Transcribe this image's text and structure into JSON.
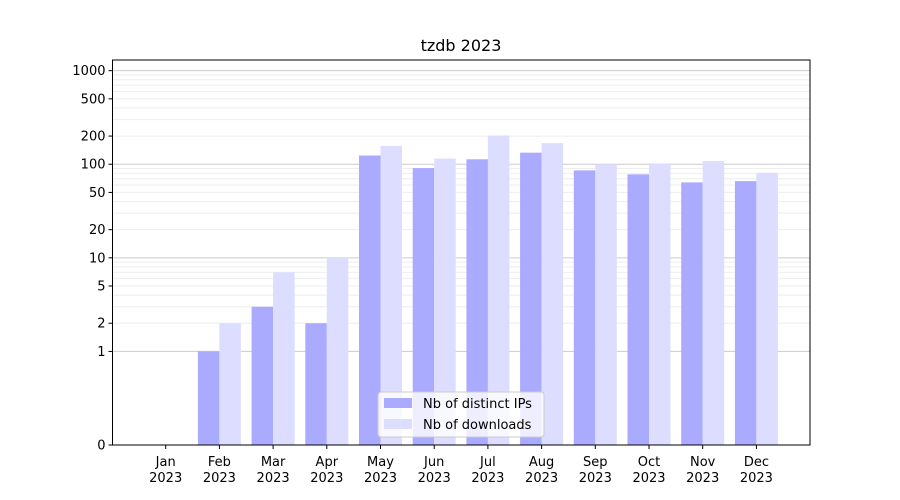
{
  "chart_data": {
    "type": "bar",
    "title": "tzdb 2023",
    "xlabel": "",
    "ylabel": "",
    "yscale": "symlog",
    "ylim": [
      0,
      1300
    ],
    "grid": "y",
    "legend_position": "bottom-center",
    "categories": [
      {
        "month": "Jan",
        "year": "2023"
      },
      {
        "month": "Feb",
        "year": "2023"
      },
      {
        "month": "Mar",
        "year": "2023"
      },
      {
        "month": "Apr",
        "year": "2023"
      },
      {
        "month": "May",
        "year": "2023"
      },
      {
        "month": "Jun",
        "year": "2023"
      },
      {
        "month": "Jul",
        "year": "2023"
      },
      {
        "month": "Aug",
        "year": "2023"
      },
      {
        "month": "Sep",
        "year": "2023"
      },
      {
        "month": "Oct",
        "year": "2023"
      },
      {
        "month": "Nov",
        "year": "2023"
      },
      {
        "month": "Dec",
        "year": "2023"
      }
    ],
    "yticks": [
      {
        "value": 0,
        "label": "0"
      },
      {
        "value": 1,
        "label": "1"
      },
      {
        "value": 2,
        "label": "2"
      },
      {
        "value": 5,
        "label": "5"
      },
      {
        "value": 10,
        "label": "10"
      },
      {
        "value": 20,
        "label": "20"
      },
      {
        "value": 50,
        "label": "50"
      },
      {
        "value": 100,
        "label": "100"
      },
      {
        "value": 200,
        "label": "200"
      },
      {
        "value": 500,
        "label": "500"
      },
      {
        "value": 1000,
        "label": "1000"
      }
    ],
    "series": [
      {
        "name": "Nb of distinct IPs",
        "color": "#aaaaff",
        "values": [
          0,
          1,
          3,
          2,
          124,
          91,
          113,
          133,
          86,
          78,
          64,
          66
        ]
      },
      {
        "name": "Nb of downloads",
        "color": "#ddddff",
        "values": [
          0,
          2,
          7,
          10,
          157,
          115,
          203,
          168,
          100,
          102,
          108,
          81
        ]
      }
    ]
  }
}
